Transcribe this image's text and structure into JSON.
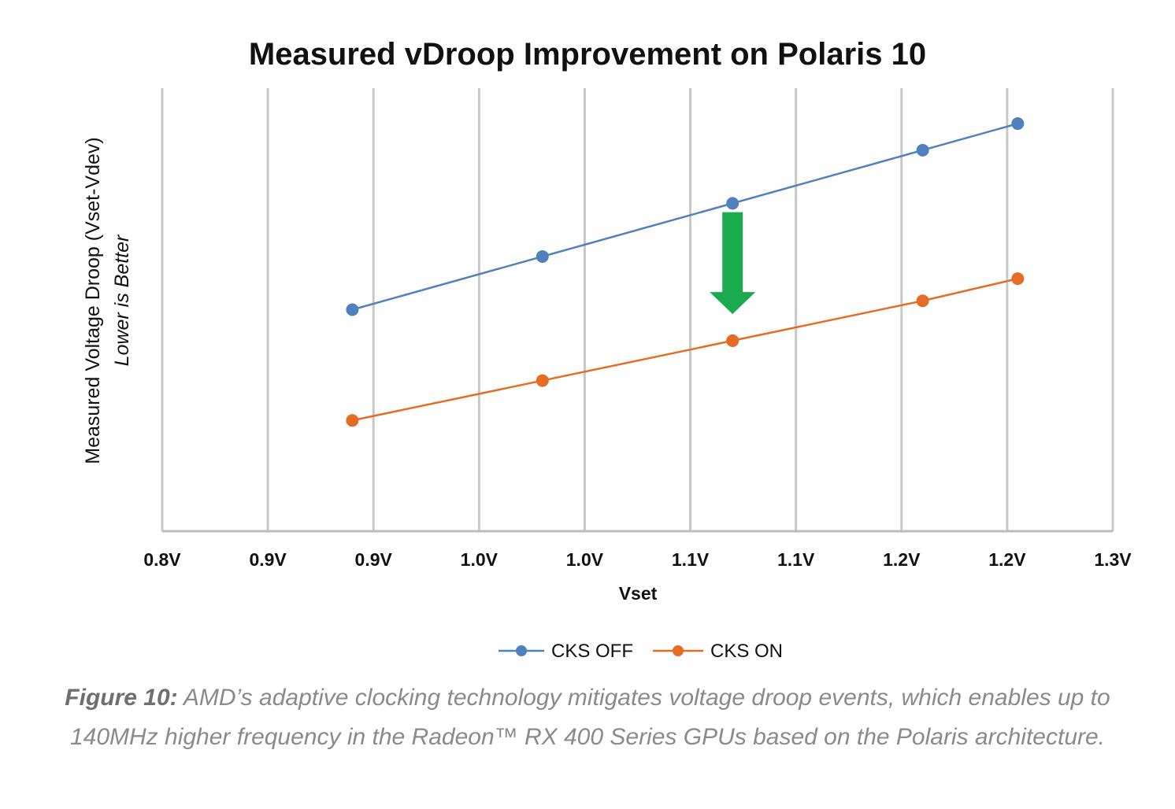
{
  "chart_data": {
    "type": "line",
    "title": "Measured vDroop Improvement on Polaris 10",
    "xlabel": "Vset",
    "ylabel": "Measured Voltage Droop (Vset-Vdev)",
    "ylabel_sub": "Lower is Better",
    "x_ticks": [
      "0.8V",
      "0.9V",
      "0.9V",
      "1.0V",
      "1.0V",
      "1.1V",
      "1.1V",
      "1.2V",
      "1.2V",
      "1.3V"
    ],
    "x": [
      0.9,
      1.0,
      1.1,
      1.2,
      1.25
    ],
    "xlim": [
      0.8,
      1.3
    ],
    "ylim": [
      0,
      100
    ],
    "grid": "vertical",
    "legend_position": "bottom",
    "series": [
      {
        "name": "CKS OFF",
        "color": "#4f81bd",
        "values": [
          50,
          62,
          74,
          86,
          92
        ]
      },
      {
        "name": "CKS ON",
        "color": "#e46c24",
        "values": [
          25,
          34,
          43,
          52,
          57
        ]
      }
    ],
    "annotation": {
      "type": "down-arrow",
      "color": "#1aab4f",
      "x": 1.1,
      "from": 72,
      "to": 49
    }
  },
  "caption": {
    "label": "Figure 10:",
    "text": " AMD’s adaptive clocking technology mitigates voltage droop events, which enables up to 140MHz higher frequency in the Radeon™ RX 400 Series GPUs based on the Polaris architecture."
  }
}
